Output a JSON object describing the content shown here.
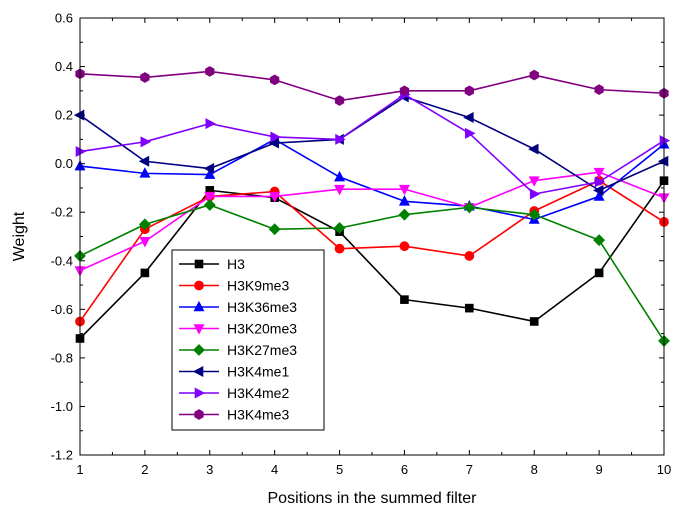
{
  "chart_data": {
    "type": "line",
    "title": "",
    "xlabel": "Positions in the summed filter",
    "ylabel": "Weight",
    "x": [
      1,
      2,
      3,
      4,
      5,
      6,
      7,
      8,
      9,
      10
    ],
    "xlim": [
      1,
      10
    ],
    "ylim": [
      -1.2,
      0.6
    ],
    "x_ticks": [
      "1",
      "2",
      "3",
      "4",
      "5",
      "6",
      "7",
      "8",
      "9",
      "10"
    ],
    "y_ticks": [
      "-1.2",
      "-1.0",
      "-0.8",
      "-0.6",
      "-0.4",
      "-0.2",
      "0.0",
      "0.2",
      "0.4",
      "0.6"
    ],
    "grid": false,
    "legend_position": "lower-left",
    "series": [
      {
        "name": "H3",
        "color": "#000000",
        "marker": "square",
        "values": [
          -0.72,
          -0.45,
          -0.11,
          -0.14,
          -0.28,
          -0.56,
          -0.595,
          -0.65,
          -0.45,
          -0.07
        ]
      },
      {
        "name": "H3K9me3",
        "color": "#ff0000",
        "marker": "circle",
        "values": [
          -0.65,
          -0.27,
          -0.135,
          -0.115,
          -0.35,
          -0.34,
          -0.38,
          -0.195,
          -0.07,
          -0.24
        ]
      },
      {
        "name": "H3K36me3",
        "color": "#0000ff",
        "marker": "triangle-up",
        "values": [
          -0.01,
          -0.04,
          -0.045,
          0.1,
          -0.055,
          -0.155,
          -0.175,
          -0.23,
          -0.135,
          0.08
        ]
      },
      {
        "name": "H3K20me3",
        "color": "#ff00ff",
        "marker": "triangle-down",
        "values": [
          -0.44,
          -0.32,
          -0.135,
          -0.135,
          -0.105,
          -0.105,
          -0.18,
          -0.07,
          -0.035,
          -0.14
        ]
      },
      {
        "name": "H3K27me3",
        "color": "#008000",
        "marker": "diamond",
        "values": [
          -0.38,
          -0.25,
          -0.17,
          -0.27,
          -0.265,
          -0.21,
          -0.18,
          -0.21,
          -0.315,
          -0.73
        ]
      },
      {
        "name": "H3K4me1",
        "color": "#000080",
        "marker": "triangle-left",
        "values": [
          0.2,
          0.01,
          -0.02,
          0.085,
          0.1,
          0.275,
          0.19,
          0.06,
          -0.11,
          0.01
        ]
      },
      {
        "name": "H3K4me2",
        "color": "#8000ff",
        "marker": "triangle-right",
        "values": [
          0.05,
          0.09,
          0.165,
          0.11,
          0.1,
          0.285,
          0.125,
          -0.125,
          -0.075,
          0.095
        ]
      },
      {
        "name": "H3K4me3",
        "color": "#800080",
        "marker": "hexagon",
        "values": [
          0.37,
          0.355,
          0.38,
          0.345,
          0.26,
          0.3,
          0.3,
          0.365,
          0.305,
          0.29
        ]
      }
    ]
  }
}
